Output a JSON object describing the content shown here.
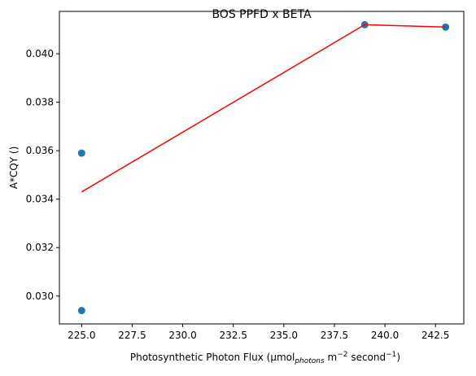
{
  "chart_data": {
    "type": "scatter",
    "title": "BOS PPFD x BETA",
    "xlabel": {
      "main": "Photosynthetic Photon Flux (µmol",
      "sub": "photons",
      "mid": " m",
      "sup1": "−2",
      "mid2": " second",
      "sup2": "−1",
      "end": ")"
    },
    "ylabel": "A*CQY ()",
    "xlim": [
      223.9,
      243.9
    ],
    "ylim": [
      0.02885,
      0.04175
    ],
    "xticks": [
      225.0,
      227.5,
      230.0,
      232.5,
      235.0,
      237.5,
      240.0,
      242.5
    ],
    "xtick_labels": [
      "225.0",
      "227.5",
      "230.0",
      "232.5",
      "235.0",
      "237.5",
      "240.0",
      "242.5"
    ],
    "yticks": [
      0.03,
      0.032,
      0.034,
      0.036,
      0.038,
      0.04
    ],
    "ytick_labels": [
      "0.030",
      "0.032",
      "0.034",
      "0.036",
      "0.038",
      "0.040"
    ],
    "grid": false,
    "series": [
      {
        "kind": "scatter",
        "color": "#1f77b4",
        "points": [
          {
            "x": 225,
            "y": 0.0359
          },
          {
            "x": 225,
            "y": 0.0294
          },
          {
            "x": 239,
            "y": 0.0412
          },
          {
            "x": 243,
            "y": 0.0411
          }
        ]
      },
      {
        "kind": "line",
        "color": "#ff0000",
        "points": [
          {
            "x": 225,
            "y": 0.0343
          },
          {
            "x": 239,
            "y": 0.0412
          },
          {
            "x": 243,
            "y": 0.0411
          }
        ]
      }
    ]
  }
}
